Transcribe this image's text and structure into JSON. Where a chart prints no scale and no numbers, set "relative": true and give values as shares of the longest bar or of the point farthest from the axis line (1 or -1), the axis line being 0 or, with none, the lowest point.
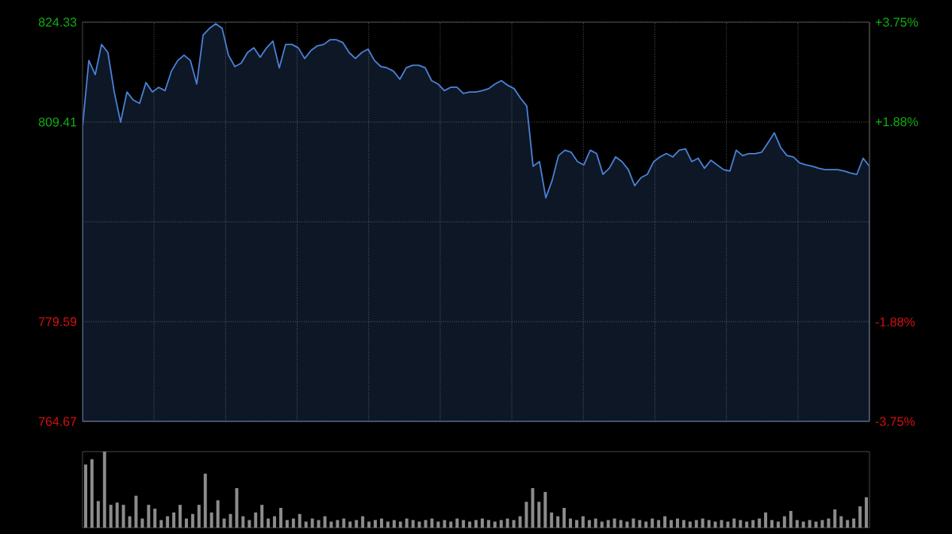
{
  "chart_data": [
    {
      "type": "area",
      "categories": [
        null,
        null,
        null,
        null,
        null,
        null,
        null,
        null,
        null,
        null,
        null,
        null,
        null,
        null,
        null,
        null,
        null,
        null,
        null,
        null,
        null,
        null,
        null,
        null,
        null,
        null,
        null,
        null,
        null,
        null,
        null,
        null,
        null,
        null,
        null,
        null,
        null,
        null,
        null,
        null,
        null,
        null,
        null,
        null,
        null,
        null,
        null,
        null,
        null,
        null,
        null,
        null,
        null,
        null,
        null,
        null,
        null,
        null,
        null,
        null,
        null,
        null,
        null,
        null,
        null,
        null,
        null,
        null,
        null,
        null,
        null,
        null,
        null,
        null,
        null,
        null,
        null,
        null,
        null,
        null,
        null,
        null,
        null,
        null,
        null,
        null,
        null,
        null,
        null,
        null,
        null,
        null,
        null,
        null,
        null,
        null,
        null,
        null,
        null,
        null,
        null,
        null,
        null,
        null,
        null,
        null,
        null,
        null,
        null,
        null,
        null,
        null,
        null,
        null,
        null,
        null,
        null,
        null,
        null,
        null,
        null,
        null,
        null,
        null,
        null
      ],
      "series": [
        {
          "color": "#4a80d4",
          "values": [
            808.7,
            818.6,
            816.5,
            821.0,
            819.8,
            813.9,
            809.4,
            813.9,
            812.7,
            812.2,
            815.3,
            813.9,
            814.6,
            814.1,
            817.0,
            818.6,
            819.4,
            818.6,
            815.1,
            822.4,
            823.4,
            824.1,
            823.4,
            819.4,
            817.7,
            818.2,
            819.8,
            820.5,
            819.1,
            820.5,
            821.5,
            817.5,
            821.0,
            821.0,
            820.5,
            818.9,
            820.1,
            820.8,
            821.0,
            821.7,
            821.7,
            821.3,
            819.8,
            818.9,
            819.8,
            820.3,
            818.6,
            817.7,
            817.5,
            817.0,
            815.8,
            817.5,
            817.9,
            817.9,
            817.5,
            815.6,
            815.1,
            814.1,
            814.6,
            814.6,
            813.7,
            813.9,
            813.9,
            814.1,
            814.4,
            815.1,
            815.6,
            814.9,
            814.4,
            813.0,
            811.8,
            802.8,
            803.5,
            798.1,
            800.7,
            804.4,
            805.2,
            804.9,
            803.5,
            803.0,
            805.2,
            804.7,
            801.6,
            802.5,
            804.2,
            803.5,
            802.3,
            799.9,
            801.1,
            801.6,
            803.5,
            804.2,
            804.7,
            804.2,
            805.2,
            805.4,
            803.5,
            804.0,
            802.5,
            803.7,
            803.0,
            802.3,
            802.1,
            805.2,
            804.4,
            804.7,
            804.7,
            804.9,
            806.3,
            807.8,
            805.6,
            804.4,
            804.2,
            803.3,
            803.0,
            802.8,
            802.5,
            802.3,
            802.3,
            802.3,
            802.1,
            801.8,
            801.6,
            804.0,
            802.8
          ]
        }
      ],
      "ylim": [
        764.67,
        824.33
      ],
      "yticks": [
        {
          "value": 764.67,
          "label": "764.67"
        },
        {
          "value": 779.59,
          "label": "779.59"
        },
        {
          "value": 794.5,
          "label": null
        },
        {
          "value": 809.41,
          "label": "809.41"
        },
        {
          "value": 824.33,
          "label": "824.33"
        }
      ],
      "y2lim": [
        -3.75,
        3.75
      ],
      "y2ticks": [
        {
          "value": -3.75,
          "label": "-3.75%"
        },
        {
          "value": -1.88,
          "label": "-1.88%"
        },
        {
          "value": 1.88,
          "label": "+1.88%"
        },
        {
          "value": 3.75,
          "label": "+3.75%"
        }
      ],
      "grid": true,
      "tick_labels": "y"
    },
    {
      "type": "bar",
      "relative": true,
      "color": "#8c8c8c",
      "tick_labels": false,
      "categories": [
        null,
        null,
        null,
        null,
        null,
        null,
        null,
        null,
        null,
        null,
        null,
        null,
        null,
        null,
        null,
        null,
        null,
        null,
        null,
        null,
        null,
        null,
        null,
        null,
        null,
        null,
        null,
        null,
        null,
        null,
        null,
        null,
        null,
        null,
        null,
        null,
        null,
        null,
        null,
        null,
        null,
        null,
        null,
        null,
        null,
        null,
        null,
        null,
        null,
        null,
        null,
        null,
        null,
        null,
        null,
        null,
        null,
        null,
        null,
        null,
        null,
        null,
        null,
        null,
        null,
        null,
        null,
        null,
        null,
        null,
        null,
        null,
        null,
        null,
        null,
        null,
        null,
        null,
        null,
        null,
        null,
        null,
        null,
        null,
        null,
        null,
        null,
        null,
        null,
        null,
        null,
        null,
        null,
        null,
        null,
        null,
        null,
        null,
        null,
        null,
        null,
        null,
        null,
        null,
        null,
        null,
        null,
        null,
        null,
        null,
        null,
        null,
        null,
        null,
        null,
        null,
        null,
        null,
        null,
        null,
        null,
        null,
        null,
        null,
        null
      ],
      "values": [
        0.83,
        0.9,
        0.35,
        1.0,
        0.3,
        0.33,
        0.3,
        0.15,
        0.42,
        0.12,
        0.3,
        0.25,
        0.1,
        0.15,
        0.2,
        0.3,
        0.12,
        0.18,
        0.3,
        0.71,
        0.2,
        0.36,
        0.12,
        0.18,
        0.52,
        0.15,
        0.1,
        0.2,
        0.3,
        0.12,
        0.15,
        0.26,
        0.1,
        0.12,
        0.18,
        0.08,
        0.12,
        0.1,
        0.15,
        0.08,
        0.1,
        0.12,
        0.08,
        0.1,
        0.15,
        0.08,
        0.1,
        0.12,
        0.08,
        0.1,
        0.08,
        0.12,
        0.1,
        0.08,
        0.1,
        0.12,
        0.08,
        0.1,
        0.08,
        0.12,
        0.1,
        0.08,
        0.1,
        0.12,
        0.1,
        0.08,
        0.1,
        0.12,
        0.1,
        0.15,
        0.34,
        0.52,
        0.34,
        0.47,
        0.2,
        0.15,
        0.26,
        0.12,
        0.1,
        0.15,
        0.1,
        0.12,
        0.08,
        0.1,
        0.12,
        0.1,
        0.08,
        0.12,
        0.1,
        0.08,
        0.12,
        0.1,
        0.15,
        0.1,
        0.12,
        0.1,
        0.08,
        0.1,
        0.12,
        0.1,
        0.08,
        0.1,
        0.08,
        0.12,
        0.1,
        0.08,
        0.1,
        0.12,
        0.2,
        0.1,
        0.08,
        0.15,
        0.22,
        0.1,
        0.08,
        0.1,
        0.08,
        0.1,
        0.12,
        0.24,
        0.15,
        0.1,
        0.12,
        0.28,
        0.4
      ]
    }
  ]
}
